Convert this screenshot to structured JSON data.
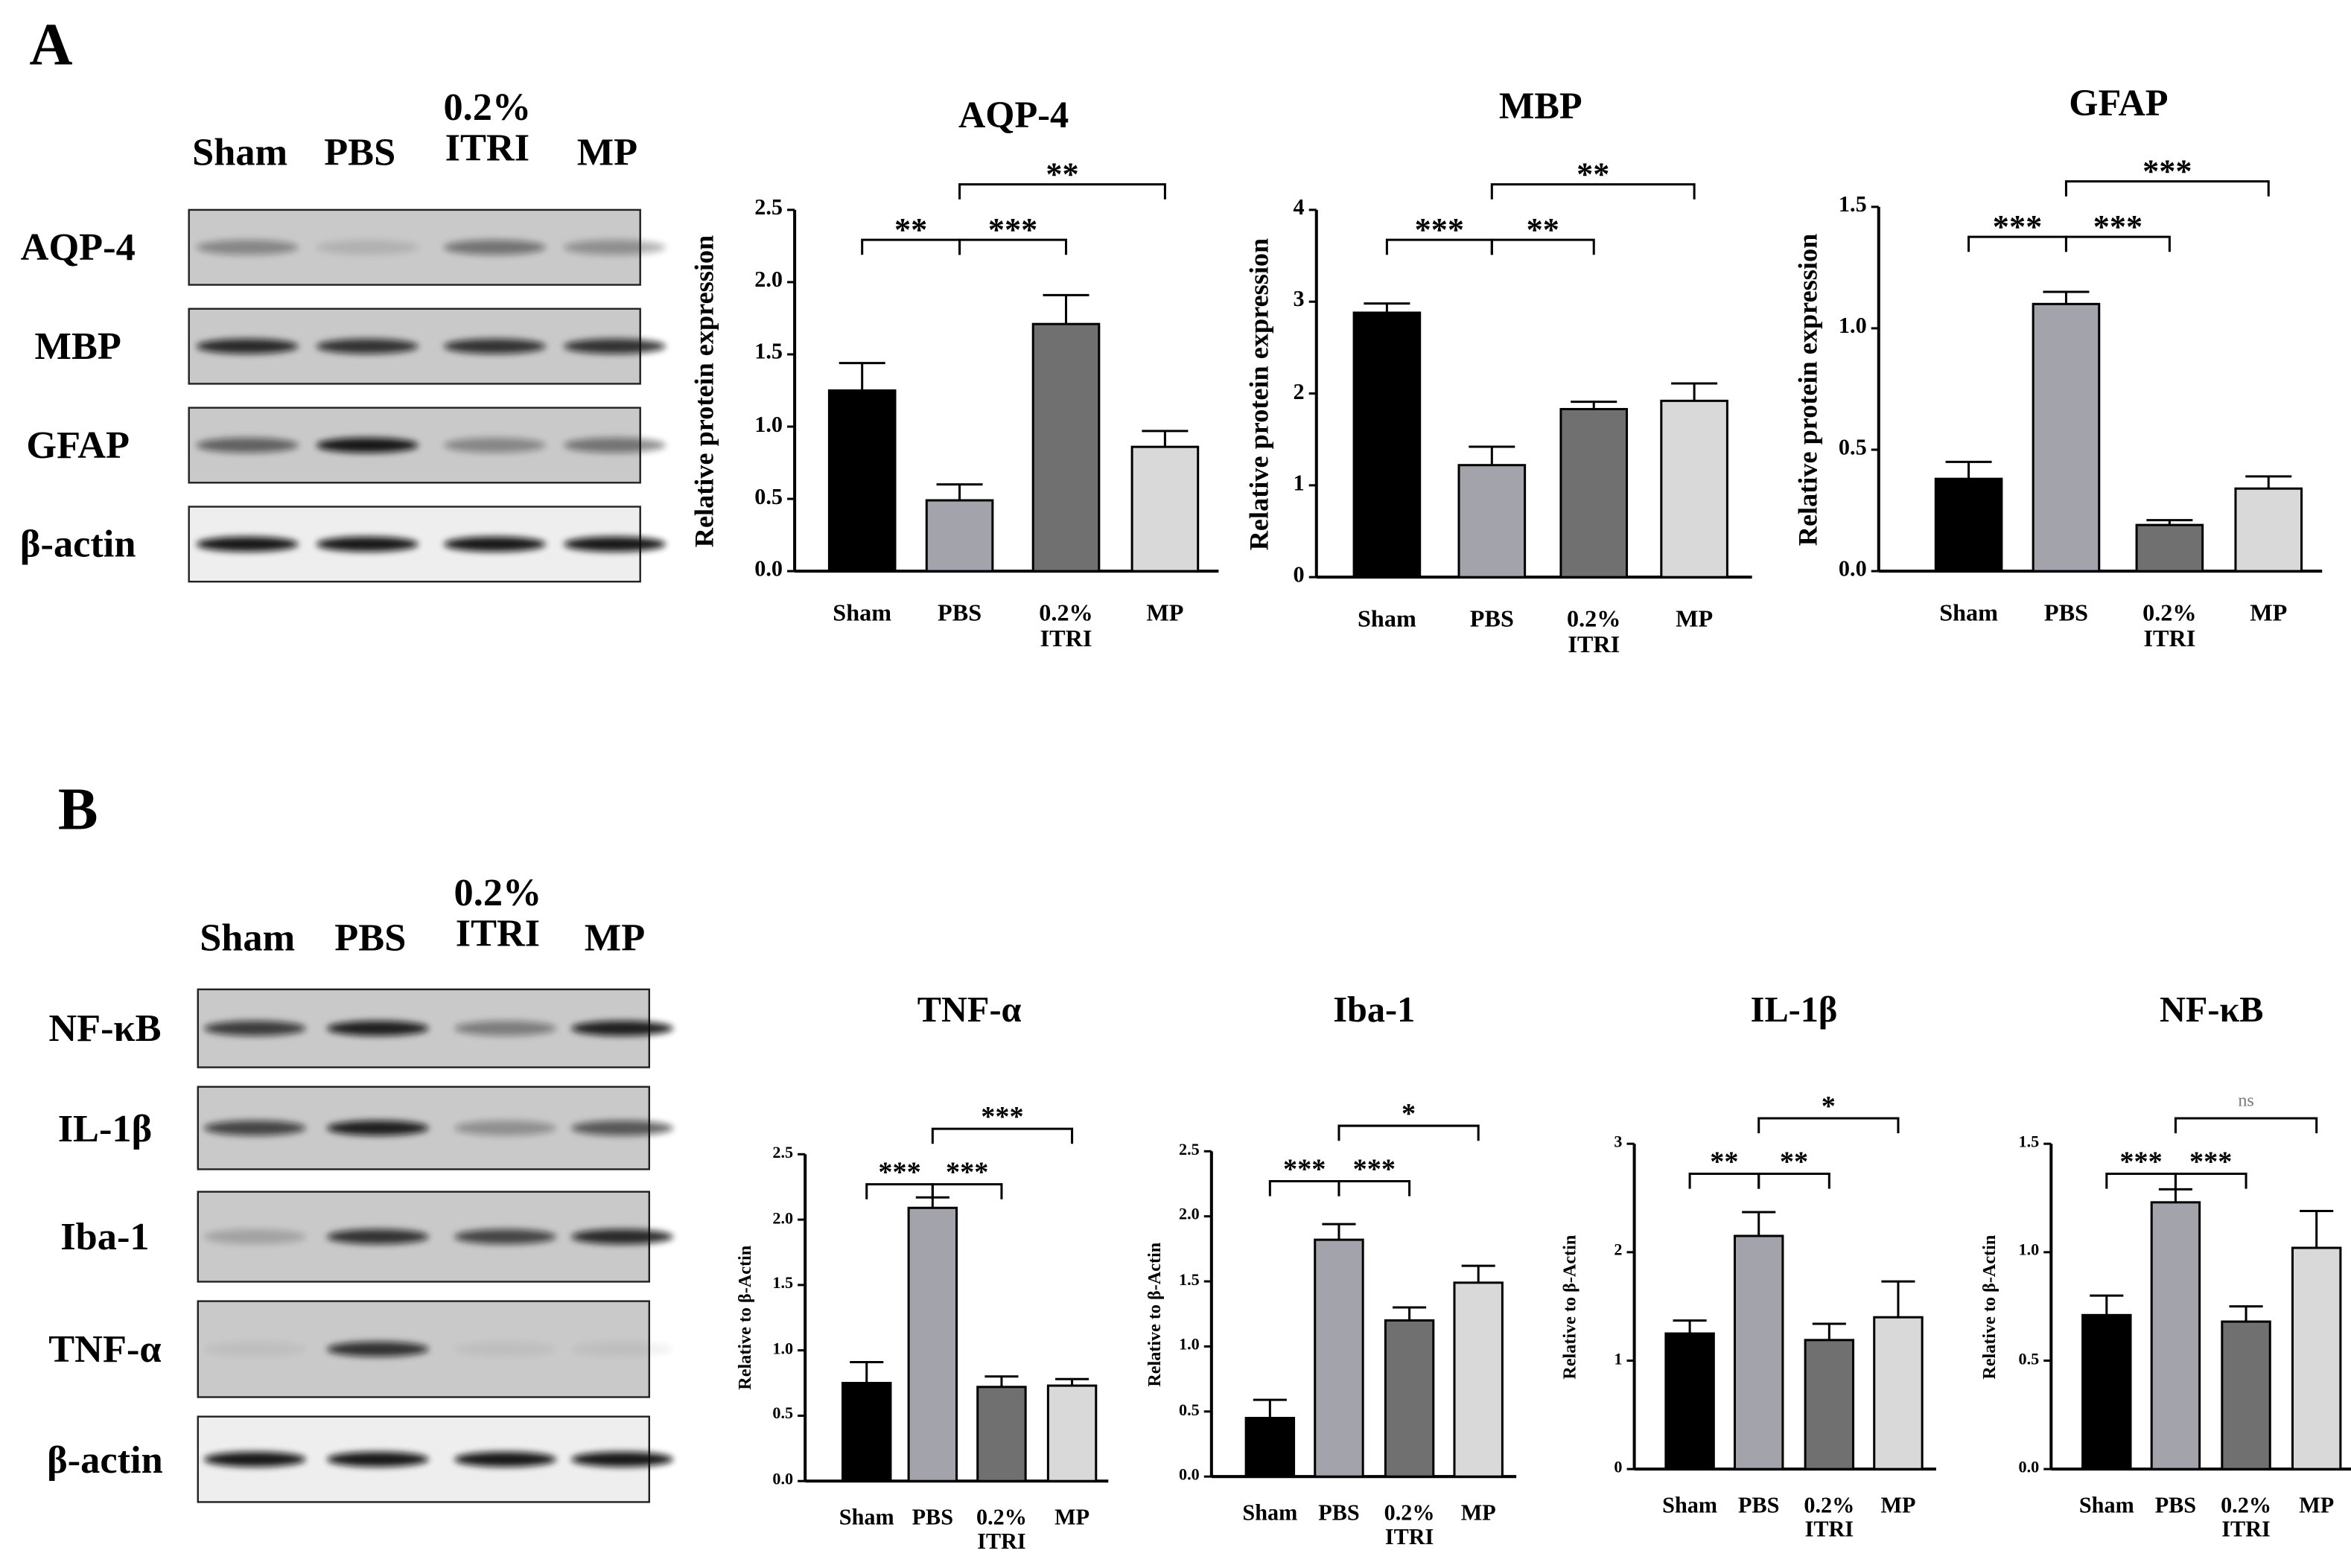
{
  "figure": {
    "panel_labels": [
      "A",
      "B"
    ]
  },
  "blots": [
    {
      "lanes": [
        "Sham",
        "PBS",
        "0.2% ITRI",
        "MP"
      ],
      "rows": [
        "AQP-4",
        "MBP",
        "GFAP",
        "β-actin"
      ]
    },
    {
      "lanes": [
        "Sham",
        "PBS",
        "0.2% ITRI",
        "MP"
      ],
      "rows": [
        "NF-κB",
        "IL-1β",
        "Iba-1",
        "TNF-α",
        "β-actin"
      ]
    }
  ],
  "chart_data": [
    {
      "type": "bar",
      "title": "AQP-4",
      "y_label": "Relative protein expression",
      "categories": [
        "Sham",
        "PBS",
        "0.2% ITRI",
        "MP"
      ],
      "values": [
        1.25,
        0.49,
        1.71,
        0.86
      ],
      "errors": [
        0.19,
        0.11,
        0.2,
        0.11
      ],
      "colors": [
        "#000000",
        "#a3a3ab",
        "#707070",
        "#d9d9d9"
      ],
      "ylim": [
        0,
        2.5
      ],
      "yticks": [
        {
          "value": 0,
          "label": "0.0"
        },
        0.5,
        {
          "value": 1,
          "label": "1.0"
        },
        1.5,
        {
          "value": 2,
          "label": "2.0"
        },
        2.5
      ],
      "comparisons": [
        {
          "from": 0,
          "to": 1,
          "label": "**"
        },
        {
          "from": 1,
          "to": 2,
          "label": "***"
        },
        {
          "from": 1,
          "to": 3,
          "label": "**"
        }
      ]
    },
    {
      "type": "bar",
      "title": "MBP",
      "y_label": "Relative protein expression",
      "categories": [
        "Sham",
        "PBS",
        "0.2% ITRI",
        "MP"
      ],
      "values": [
        2.88,
        1.22,
        1.83,
        1.92
      ],
      "errors": [
        0.1,
        0.2,
        0.08,
        0.19
      ],
      "colors": [
        "#000000",
        "#a3a3ab",
        "#707070",
        "#d9d9d9"
      ],
      "ylim": [
        0,
        4
      ],
      "yticks": [
        0,
        1,
        2,
        3,
        4
      ],
      "comparisons": [
        {
          "from": 0,
          "to": 1,
          "label": "***"
        },
        {
          "from": 1,
          "to": 2,
          "label": "**"
        },
        {
          "from": 1,
          "to": 3,
          "label": "**"
        }
      ]
    },
    {
      "type": "bar",
      "title": "GFAP",
      "y_label": "Relative protein expression",
      "categories": [
        "Sham",
        "PBS",
        "0.2% ITRI",
        "MP"
      ],
      "values": [
        0.38,
        1.1,
        0.19,
        0.34
      ],
      "errors": [
        0.07,
        0.05,
        0.02,
        0.05
      ],
      "colors": [
        "#000000",
        "#a3a3ab",
        "#707070",
        "#d9d9d9"
      ],
      "ylim": [
        0,
        1.5
      ],
      "yticks": [
        {
          "value": 0,
          "label": "0.0"
        },
        0.5,
        {
          "value": 1,
          "label": "1.0"
        },
        1.5
      ],
      "comparisons": [
        {
          "from": 0,
          "to": 1,
          "label": "***"
        },
        {
          "from": 1,
          "to": 2,
          "label": "***"
        },
        {
          "from": 1,
          "to": 3,
          "label": "***"
        }
      ]
    },
    {
      "type": "bar",
      "title": "TNF-α",
      "y_label": "Relative to β-Actin",
      "categories": [
        "Sham",
        "PBS",
        "0.2% ITRI",
        "MP"
      ],
      "values": [
        0.75,
        2.09,
        0.72,
        0.73
      ],
      "errors": [
        0.16,
        0.08,
        0.08,
        0.05
      ],
      "colors": [
        "#000000",
        "#a3a3ab",
        "#707070",
        "#d9d9d9"
      ],
      "ylim": [
        0,
        2.5
      ],
      "yticks": [
        {
          "value": 0,
          "label": "0.0"
        },
        0.5,
        {
          "value": 1,
          "label": "1.0"
        },
        1.5,
        {
          "value": 2,
          "label": "2.0"
        },
        2.5
      ],
      "comparisons": [
        {
          "from": 0,
          "to": 1,
          "label": "***"
        },
        {
          "from": 1,
          "to": 2,
          "label": "***"
        },
        {
          "from": 1,
          "to": 3,
          "label": "***"
        }
      ]
    },
    {
      "type": "bar",
      "title": "Iba-1",
      "y_label": "Relative to β-Actin",
      "categories": [
        "Sham",
        "PBS",
        "0.2% ITRI",
        "MP"
      ],
      "values": [
        0.45,
        1.82,
        1.2,
        1.49
      ],
      "errors": [
        0.14,
        0.12,
        0.1,
        0.13
      ],
      "colors": [
        "#000000",
        "#a3a3ab",
        "#707070",
        "#d9d9d9"
      ],
      "ylim": [
        0,
        2.5
      ],
      "yticks": [
        {
          "value": 0,
          "label": "0.0"
        },
        0.5,
        {
          "value": 1,
          "label": "1.0"
        },
        1.5,
        {
          "value": 2,
          "label": "2.0"
        },
        2.5
      ],
      "comparisons": [
        {
          "from": 0,
          "to": 1,
          "label": "***"
        },
        {
          "from": 1,
          "to": 2,
          "label": "***"
        },
        {
          "from": 1,
          "to": 3,
          "label": "*"
        }
      ]
    },
    {
      "type": "bar",
      "title": "IL-1β",
      "y_label": "Relative to β-Actin",
      "categories": [
        "Sham",
        "PBS",
        "0.2% ITRI",
        "MP"
      ],
      "values": [
        1.25,
        2.15,
        1.19,
        1.4
      ],
      "errors": [
        0.12,
        0.22,
        0.15,
        0.33
      ],
      "colors": [
        "#000000",
        "#a3a3ab",
        "#707070",
        "#d9d9d9"
      ],
      "ylim": [
        0,
        3
      ],
      "yticks": [
        0,
        1,
        2,
        3
      ],
      "comparisons": [
        {
          "from": 0,
          "to": 1,
          "label": "**"
        },
        {
          "from": 1,
          "to": 2,
          "label": "**"
        },
        {
          "from": 1,
          "to": 3,
          "label": "*"
        }
      ]
    },
    {
      "type": "bar",
      "title": "NF-κB",
      "y_label": "Relative to β-Actin",
      "categories": [
        "Sham",
        "PBS",
        "0.2% ITRI",
        "MP"
      ],
      "values": [
        0.71,
        1.23,
        0.68,
        1.02
      ],
      "errors": [
        0.09,
        0.06,
        0.07,
        0.17
      ],
      "colors": [
        "#000000",
        "#a3a3ab",
        "#707070",
        "#d9d9d9"
      ],
      "ylim": [
        0,
        1.5
      ],
      "yticks": [
        {
          "value": 0,
          "label": "0.0"
        },
        0.5,
        {
          "value": 1,
          "label": "1.0"
        },
        1.5
      ],
      "comparisons": [
        {
          "from": 0,
          "to": 1,
          "label": "***"
        },
        {
          "from": 1,
          "to": 2,
          "label": "***"
        },
        {
          "from": 1,
          "to": 3,
          "label": "ns"
        }
      ]
    }
  ]
}
